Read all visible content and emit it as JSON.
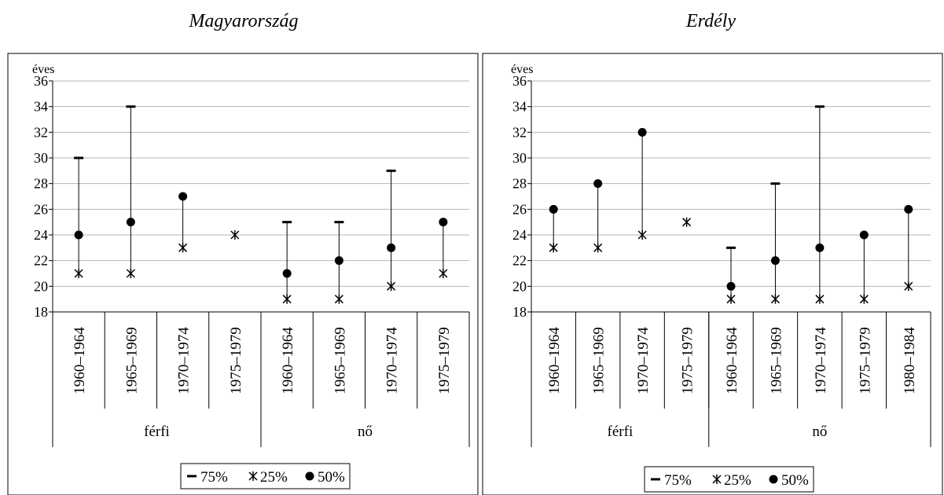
{
  "chart_data": [
    {
      "type": "box",
      "title": "Magyarország",
      "ylabel": "éves",
      "ylim": [
        18,
        36
      ],
      "yticks": [
        18,
        20,
        22,
        24,
        26,
        28,
        30,
        32,
        34,
        36
      ],
      "grid": true,
      "legend_position": "bottom",
      "groups": [
        {
          "label": "férfi",
          "categories": [
            "1960–1964",
            "1965–1969",
            "1970–1974",
            "1975–1979"
          ]
        },
        {
          "label": "nő",
          "categories": [
            "1960–1964",
            "1965–1969",
            "1970–1974",
            "1975–1979"
          ]
        }
      ],
      "series": [
        {
          "name": "75%",
          "marker": "dash",
          "values": [
            30,
            34,
            null,
            null,
            25,
            25,
            29,
            null
          ]
        },
        {
          "name": "25%",
          "marker": "star",
          "values": [
            21,
            21,
            23,
            24,
            19,
            19,
            20,
            21
          ]
        },
        {
          "name": "50%",
          "marker": "dot",
          "values": [
            24,
            25,
            27,
            null,
            21,
            22,
            23,
            25
          ]
        }
      ]
    },
    {
      "type": "box",
      "title": "Erdély",
      "ylabel": "éves",
      "ylim": [
        18,
        36
      ],
      "yticks": [
        18,
        20,
        22,
        24,
        26,
        28,
        30,
        32,
        34,
        36
      ],
      "grid": true,
      "legend_position": "bottom",
      "groups": [
        {
          "label": "férfi",
          "categories": [
            "1960–1964",
            "1965–1969",
            "1970–1974",
            "1975–1979"
          ]
        },
        {
          "label": "nő",
          "categories": [
            "1960–1964",
            "1965–1969",
            "1970–1974",
            "1975–1979",
            "1980–1984"
          ]
        }
      ],
      "series": [
        {
          "name": "75%",
          "marker": "dash",
          "values": [
            null,
            null,
            null,
            null,
            23,
            28,
            34,
            null,
            null
          ]
        },
        {
          "name": "25%",
          "marker": "star",
          "values": [
            23,
            23,
            24,
            25,
            19,
            19,
            19,
            19,
            20
          ]
        },
        {
          "name": "50%",
          "marker": "dot",
          "values": [
            26,
            28,
            32,
            null,
            20,
            22,
            23,
            24,
            26
          ]
        }
      ]
    }
  ]
}
